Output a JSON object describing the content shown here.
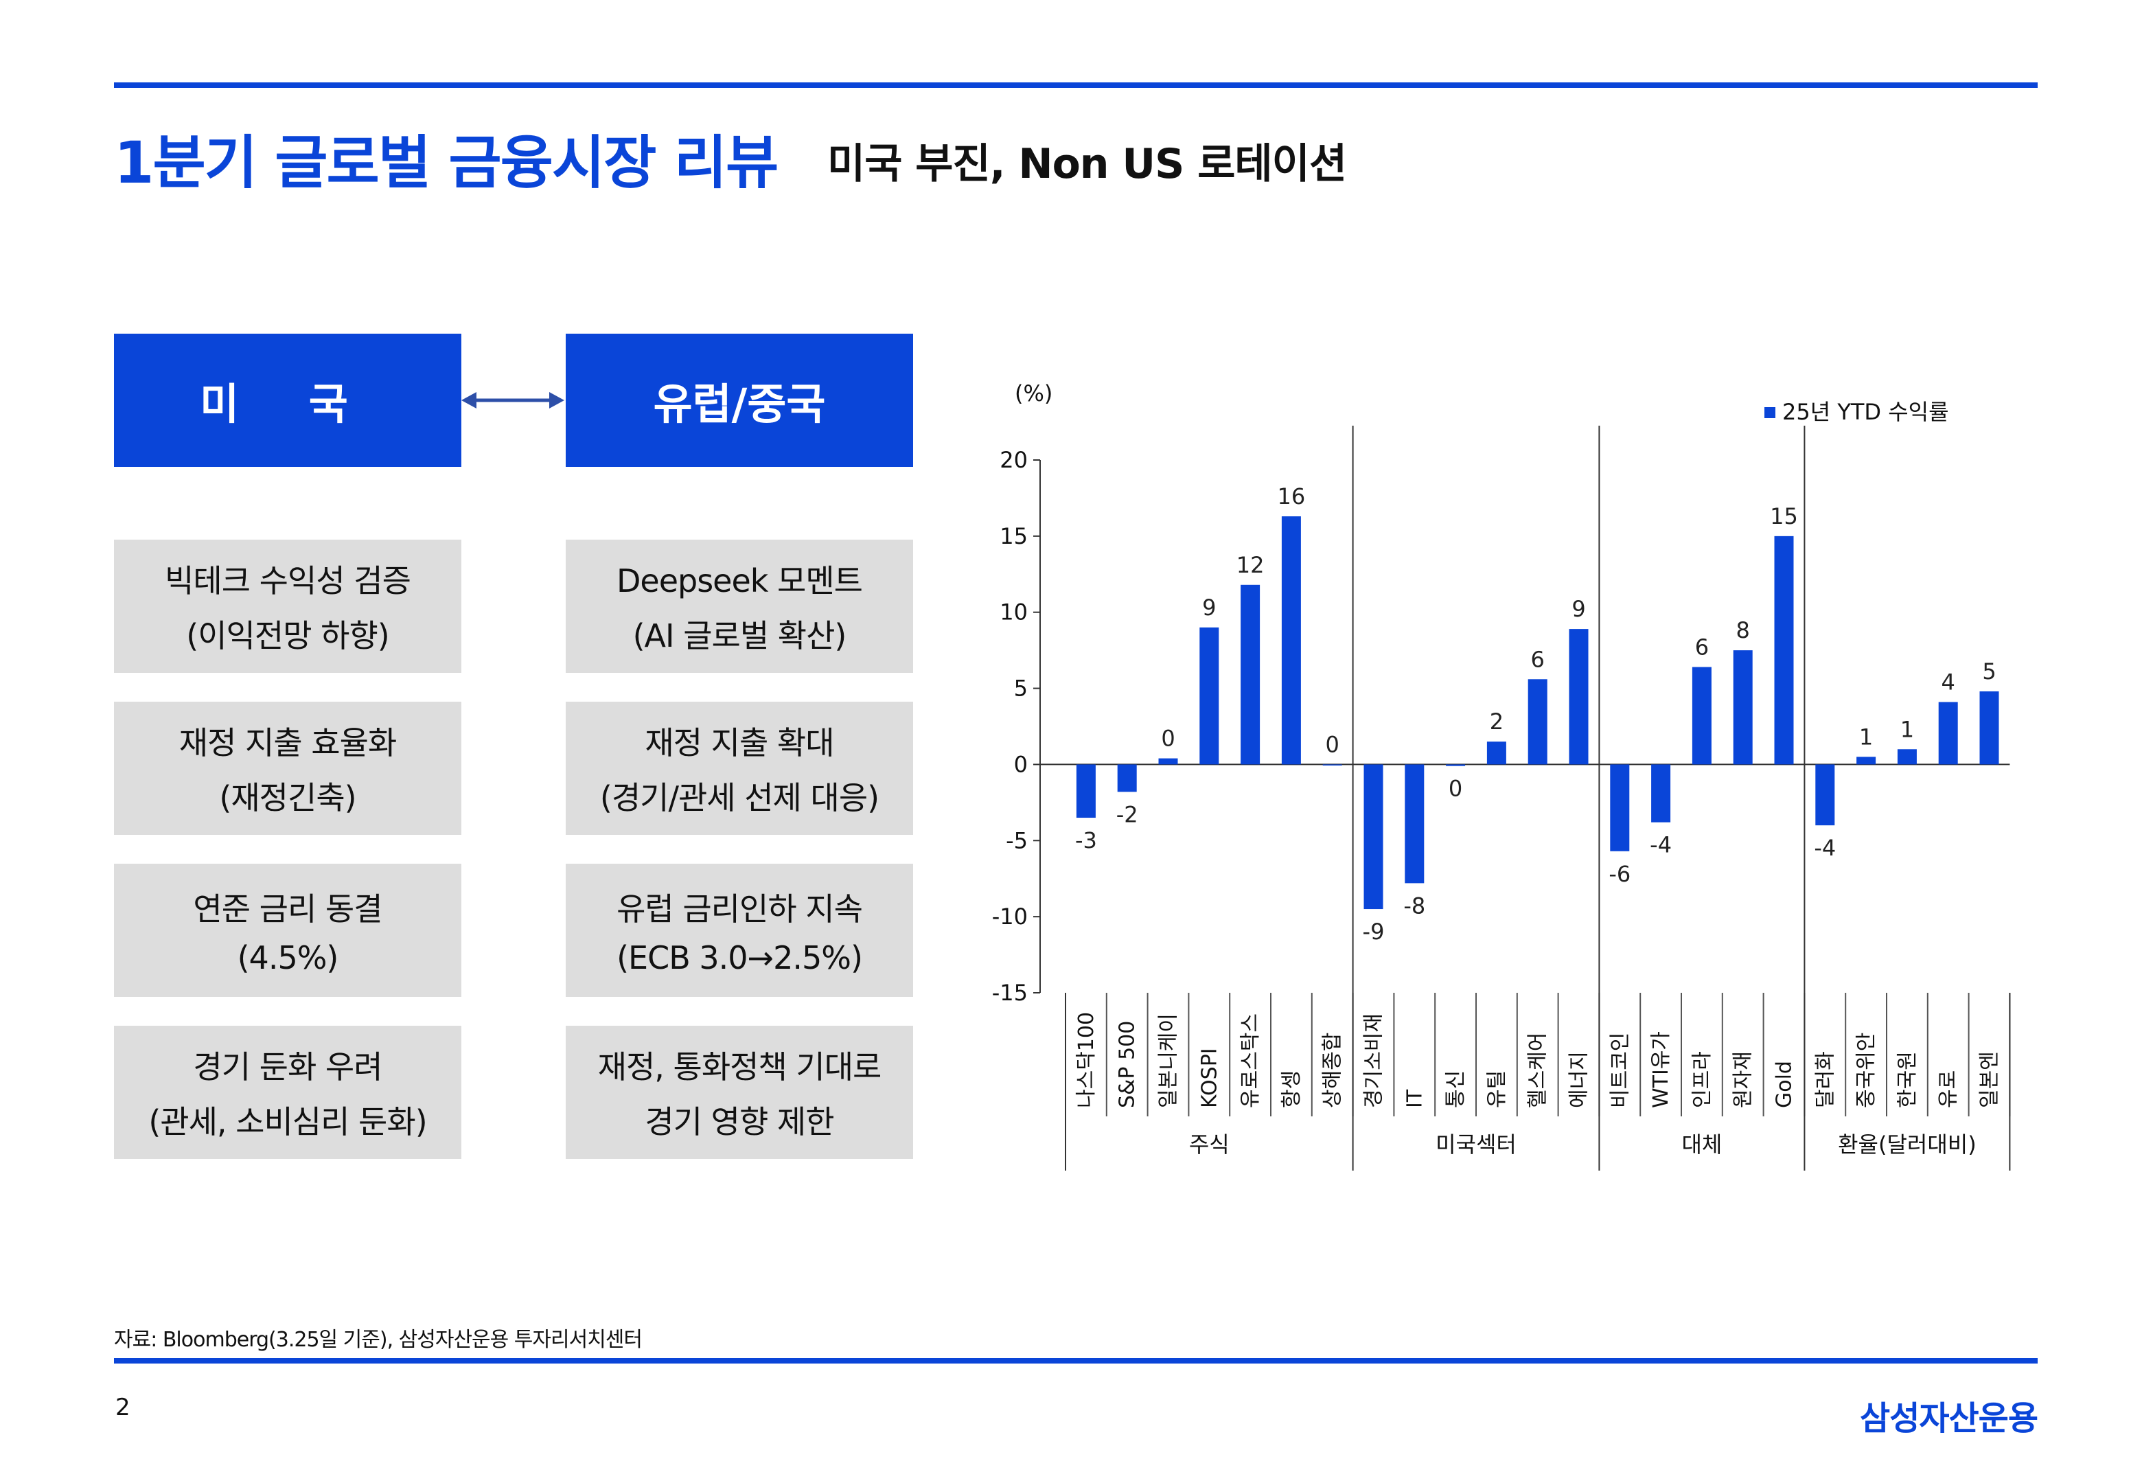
{
  "header": {
    "title": "1분기 글로벌 금융시장 리뷰",
    "subtitle": "미국 부진, Non US 로테이션"
  },
  "columns": {
    "us": {
      "title": "미  국",
      "boxes": [
        {
          "line1": "빅테크 수익성 검증",
          "line2": "(이익전망 하향)"
        },
        {
          "line1": "재정 지출 효율화",
          "line2": "(재정긴축)"
        },
        {
          "line1": "연준 금리 동결",
          "line2": "(4.5%)"
        },
        {
          "line1": "경기 둔화 우려",
          "line2": "(관세, 소비심리 둔화)"
        }
      ]
    },
    "eu_cn": {
      "title": "유럽/중국",
      "boxes": [
        {
          "line1": "Deepseek 모멘트",
          "line2": "(AI 글로벌 확산)"
        },
        {
          "line1": "재정 지출 확대",
          "line2": "(경기/관세 선제 대응)"
        },
        {
          "line1": "유럽 금리인하 지속",
          "line2": "(ECB 3.0→2.5%)"
        },
        {
          "line1": "재정, 통화정책 기대로",
          "line2": "경기 영향 제한"
        }
      ]
    }
  },
  "colors": {
    "accent": "#0a45d8",
    "bar": "#0a45d8",
    "box_bg": "#dddddd"
  },
  "chart_data": {
    "type": "bar",
    "unit_label": "(%)",
    "legend": "25년 YTD 수익률",
    "legend_position": "top-right",
    "ylim": [
      -15,
      20
    ],
    "yticks": [
      20,
      15,
      10,
      5,
      0,
      -5,
      -10,
      -15
    ],
    "categories": [
      "나스닥100",
      "S&P 500",
      "일본니케이",
      "KOSPI",
      "유로스탁스",
      "항셍",
      "상해종합",
      "경기소비재",
      "IT",
      "통신",
      "유틸",
      "헬스케어",
      "에너지",
      "비트코인",
      "WTI유가",
      "인프라",
      "원자재",
      "Gold",
      "달러화",
      "중국위안",
      "한국원",
      "유로",
      "일본엔"
    ],
    "values": [
      -3.5,
      -1.8,
      0.4,
      9.0,
      11.8,
      16.3,
      0.0,
      -9.5,
      -7.8,
      -0.1,
      1.5,
      5.6,
      8.9,
      -5.7,
      -3.8,
      6.4,
      7.5,
      15.0,
      -4.0,
      0.5,
      1.0,
      4.1,
      4.8
    ],
    "data_labels": [
      "-3",
      "-2",
      "0",
      "9",
      "12",
      "16",
      "0",
      "-9",
      "-8",
      "0",
      "2",
      "6",
      "9",
      "-6",
      "-4",
      "6",
      "8",
      "15",
      "-4",
      "1",
      "1",
      "4",
      "5"
    ],
    "groups": [
      {
        "name": "주식",
        "count": 7
      },
      {
        "name": "미국섹터",
        "count": 6
      },
      {
        "name": "대체",
        "count": 5
      },
      {
        "name": "환율(달러대비)",
        "count": 5
      }
    ]
  },
  "footer": {
    "source": "자료: Bloomberg(3.25일 기준), 삼성자산운용 투자리서치센터",
    "page": "2",
    "brand": "삼성자산운용"
  }
}
